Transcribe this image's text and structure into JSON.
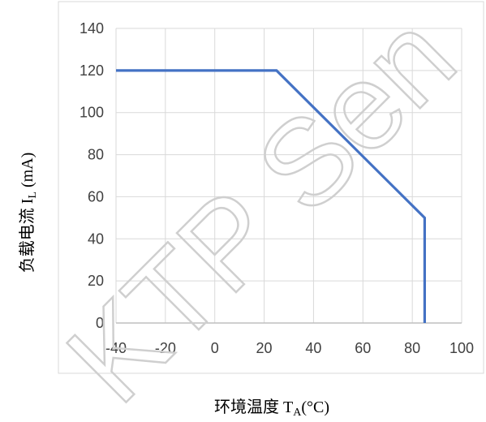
{
  "chart_data": {
    "type": "line",
    "xlabel": {
      "main": "环境温度 T",
      "sub": "A",
      "suffix": "(°C)"
    },
    "ylabel": {
      "main": "负载电流 I",
      "sub": "L",
      "suffix": " (mA)"
    },
    "xlim": [
      -40,
      100
    ],
    "ylim": [
      0,
      140
    ],
    "x_ticks": [
      "-40",
      "-20",
      "0",
      "20",
      "40",
      "60",
      "80",
      "100"
    ],
    "y_ticks": [
      "0",
      "20",
      "40",
      "60",
      "80",
      "100",
      "120",
      "140"
    ],
    "grid": true,
    "legend": "none",
    "series": [
      {
        "color": "#4472c4",
        "points": [
          {
            "x": -40,
            "y": 120
          },
          {
            "x": 25,
            "y": 120
          },
          {
            "x": 85,
            "y": 50
          },
          {
            "x": 85,
            "y": 0
          }
        ]
      }
    ],
    "watermark": "KTP Sen"
  }
}
